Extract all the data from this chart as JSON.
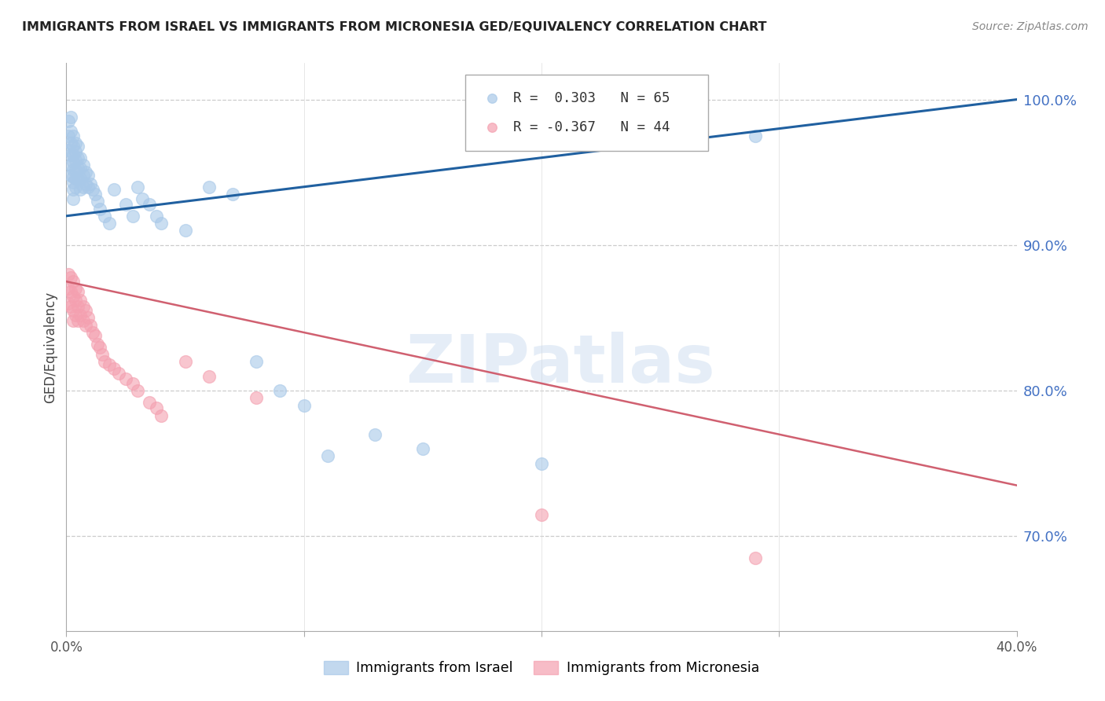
{
  "title": "IMMIGRANTS FROM ISRAEL VS IMMIGRANTS FROM MICRONESIA GED/EQUIVALENCY CORRELATION CHART",
  "source": "Source: ZipAtlas.com",
  "ylabel": "GED/Equivalency",
  "legend_israel": "Immigrants from Israel",
  "legend_micronesia": "Immigrants from Micronesia",
  "R_israel": 0.303,
  "N_israel": 65,
  "R_micronesia": -0.367,
  "N_micronesia": 44,
  "israel_color": "#a8c8e8",
  "micronesia_color": "#f4a0b0",
  "israel_line_color": "#2060a0",
  "micronesia_line_color": "#d06070",
  "watermark_text": "ZIPatlas",
  "watermark_color": "#ccddf0",
  "xmin": 0.0,
  "xmax": 0.4,
  "ymin": 0.635,
  "ymax": 1.025,
  "yticks": [
    0.7,
    0.8,
    0.9,
    1.0
  ],
  "ytick_labels": [
    "70.0%",
    "80.0%",
    "90.0%",
    "100.0%"
  ],
  "israel_trend_x0": 0.0,
  "israel_trend_y0": 0.92,
  "israel_trend_x1": 0.4,
  "israel_trend_y1": 1.0,
  "micro_trend_x0": 0.0,
  "micro_trend_y0": 0.875,
  "micro_trend_x1": 0.4,
  "micro_trend_y1": 0.735,
  "israel_scatter_x": [
    0.001,
    0.001,
    0.001,
    0.002,
    0.002,
    0.002,
    0.002,
    0.002,
    0.002,
    0.003,
    0.003,
    0.003,
    0.003,
    0.003,
    0.003,
    0.003,
    0.003,
    0.003,
    0.004,
    0.004,
    0.004,
    0.004,
    0.004,
    0.004,
    0.005,
    0.005,
    0.005,
    0.005,
    0.006,
    0.006,
    0.006,
    0.006,
    0.007,
    0.007,
    0.007,
    0.008,
    0.008,
    0.009,
    0.009,
    0.01,
    0.011,
    0.012,
    0.013,
    0.014,
    0.016,
    0.018,
    0.02,
    0.025,
    0.028,
    0.03,
    0.032,
    0.035,
    0.038,
    0.04,
    0.05,
    0.06,
    0.07,
    0.08,
    0.09,
    0.1,
    0.11,
    0.13,
    0.15,
    0.2,
    0.29
  ],
  "israel_scatter_y": [
    0.985,
    0.975,
    0.965,
    0.988,
    0.978,
    0.97,
    0.962,
    0.955,
    0.948,
    0.975,
    0.968,
    0.962,
    0.957,
    0.952,
    0.947,
    0.943,
    0.938,
    0.932,
    0.97,
    0.964,
    0.958,
    0.952,
    0.946,
    0.94,
    0.968,
    0.96,
    0.953,
    0.945,
    0.96,
    0.953,
    0.946,
    0.938,
    0.955,
    0.948,
    0.94,
    0.95,
    0.942,
    0.948,
    0.94,
    0.942,
    0.938,
    0.935,
    0.93,
    0.925,
    0.92,
    0.915,
    0.938,
    0.928,
    0.92,
    0.94,
    0.932,
    0.928,
    0.92,
    0.915,
    0.91,
    0.94,
    0.935,
    0.82,
    0.8,
    0.79,
    0.755,
    0.77,
    0.76,
    0.75,
    0.975
  ],
  "micro_scatter_x": [
    0.001,
    0.001,
    0.001,
    0.002,
    0.002,
    0.002,
    0.003,
    0.003,
    0.003,
    0.003,
    0.004,
    0.004,
    0.004,
    0.005,
    0.005,
    0.005,
    0.006,
    0.006,
    0.007,
    0.007,
    0.008,
    0.008,
    0.009,
    0.01,
    0.011,
    0.012,
    0.013,
    0.014,
    0.015,
    0.016,
    0.018,
    0.02,
    0.022,
    0.025,
    0.028,
    0.03,
    0.035,
    0.038,
    0.04,
    0.05,
    0.06,
    0.08,
    0.2,
    0.29
  ],
  "micro_scatter_y": [
    0.88,
    0.87,
    0.86,
    0.878,
    0.868,
    0.858,
    0.875,
    0.865,
    0.855,
    0.848,
    0.87,
    0.862,
    0.852,
    0.868,
    0.858,
    0.848,
    0.862,
    0.852,
    0.858,
    0.848,
    0.855,
    0.845,
    0.85,
    0.845,
    0.84,
    0.838,
    0.832,
    0.83,
    0.825,
    0.82,
    0.818,
    0.815,
    0.812,
    0.808,
    0.805,
    0.8,
    0.792,
    0.788,
    0.783,
    0.82,
    0.81,
    0.795,
    0.715,
    0.685
  ]
}
